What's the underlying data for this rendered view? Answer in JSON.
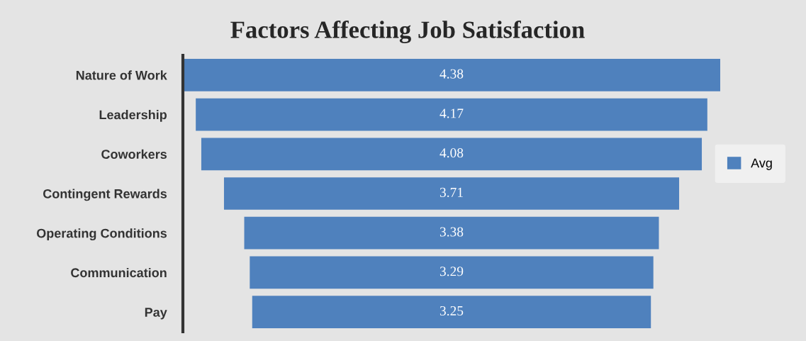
{
  "chart_data": {
    "type": "other",
    "title": "Factors Affecting Job Satisfaction",
    "categories": [
      "Nature of Work",
      "Leadership",
      "Coworkers",
      "Contingent Rewards",
      "Operating Conditions",
      "Communication",
      "Pay"
    ],
    "series": [
      {
        "name": "Avg",
        "color": "#4f81bd",
        "values": [
          4.38,
          4.17,
          4.08,
          3.71,
          3.38,
          3.29,
          3.25
        ]
      }
    ],
    "data_labels": true,
    "legend": "right"
  }
}
